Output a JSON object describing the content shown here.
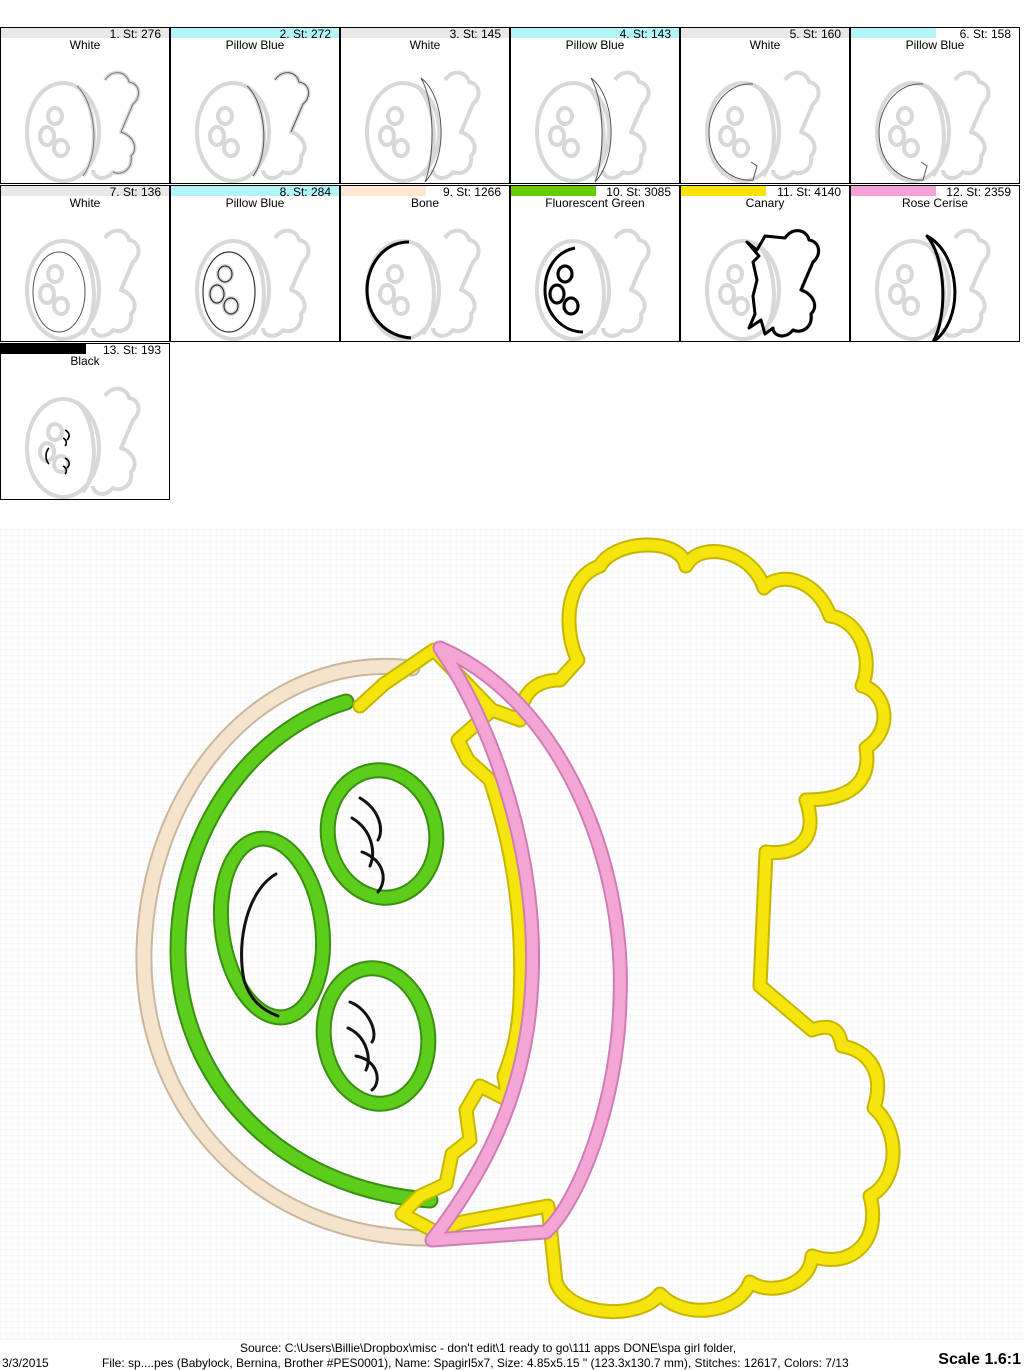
{
  "steps": [
    {
      "num": "1. St: 276",
      "name": "White",
      "color": "#e8e8e8",
      "bar": 1.0
    },
    {
      "num": "2. St: 272",
      "name": "Pillow Blue",
      "color": "#b3f4f6",
      "bar": 1.0
    },
    {
      "num": "3. St: 145",
      "name": "White",
      "color": "#e8e8e8",
      "bar": 1.0
    },
    {
      "num": "4. St: 143",
      "name": "Pillow Blue",
      "color": "#b3f4f6",
      "bar": 1.0
    },
    {
      "num": "5. St: 160",
      "name": "White",
      "color": "#e8e8e8",
      "bar": 1.0
    },
    {
      "num": "6. St: 158",
      "name": "Pillow Blue",
      "color": "#b3f4f6",
      "bar": 0.5
    },
    {
      "num": "7. St: 136",
      "name": "White",
      "color": "#e8e8e8",
      "bar": 1.0
    },
    {
      "num": "8. St: 284",
      "name": "Pillow Blue",
      "color": "#b3f4f6",
      "bar": 1.0
    },
    {
      "num": "9. St: 1266",
      "name": "Bone",
      "color": "#fde7d2",
      "bar": 0.5
    },
    {
      "num": "10. St: 3085",
      "name": "Fluorescent Green",
      "color": "#66cc00",
      "bar": 0.5
    },
    {
      "num": "11. St: 4140",
      "name": "Canary",
      "color": "#f7e20c",
      "bar": 0.5
    },
    {
      "num": "12. St: 2359",
      "name": "Rose Cerise",
      "color": "#f7a1d8",
      "bar": 0.5
    },
    {
      "num": "13. St: 193",
      "name": "Black",
      "color": "#000000",
      "bar": 0.5
    }
  ],
  "footer": {
    "source": "Source: C:\\Users\\Billie\\Dropbox\\misc - don't edit\\1 ready to go\\111 apps DONE\\spa girl folder,",
    "date": "3/3/2015",
    "file": "File: sp....pes (Babylock, Bernina, Brother #PES0001), Name: Spagirl5x7, Size: 4.85x5.15 \" (123.3x130.7 mm), Stitches: 12617, Colors: 7/13",
    "scale": "Scale 1.6:1"
  },
  "design_colors": {
    "bone": "#f6e3cc",
    "green": "#5ccd1a",
    "canary": "#f5e50c",
    "rose": "#f3a6d6",
    "black": "#111111"
  }
}
